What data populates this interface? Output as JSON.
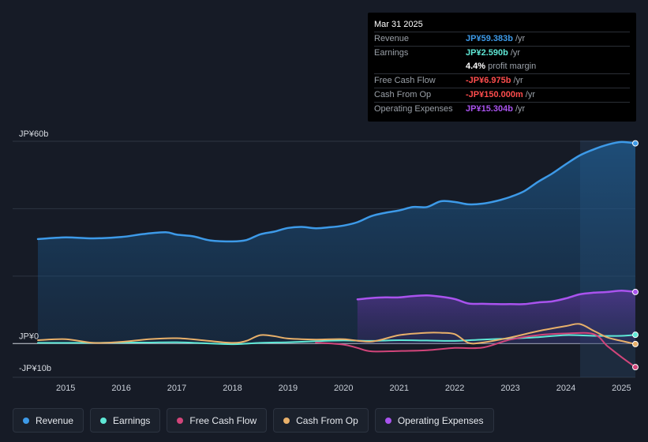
{
  "tooltip": {
    "date": "Mar 31 2025",
    "rows": [
      {
        "label": "Revenue",
        "value": "JP¥59.383b",
        "unit": "/yr",
        "color": "#3d9ae8"
      },
      {
        "label": "Earnings",
        "value": "JP¥2.590b",
        "unit": "/yr",
        "color": "#5fe8d6"
      },
      {
        "label": "",
        "value": "4.4%",
        "unit": "profit margin",
        "color": "#ffffff"
      },
      {
        "label": "Free Cash Flow",
        "value": "-JP¥6.975b",
        "unit": "/yr",
        "color": "#ff4d4d"
      },
      {
        "label": "Cash From Op",
        "value": "-JP¥150.000m",
        "unit": "/yr",
        "color": "#ff4d4d"
      },
      {
        "label": "Operating Expenses",
        "value": "JP¥15.304b",
        "unit": "/yr",
        "color": "#a953ee"
      }
    ]
  },
  "legend": [
    {
      "label": "Revenue",
      "color": "#3d9ae8"
    },
    {
      "label": "Earnings",
      "color": "#5fe8d6"
    },
    {
      "label": "Free Cash Flow",
      "color": "#d2457a"
    },
    {
      "label": "Cash From Op",
      "color": "#e8b06a"
    },
    {
      "label": "Operating Expenses",
      "color": "#a953ee"
    }
  ],
  "chart_data": {
    "type": "area",
    "title": "",
    "xlabel": "",
    "ylabel": "",
    "x_ticks": [
      "2015",
      "2016",
      "2017",
      "2018",
      "2019",
      "2020",
      "2021",
      "2022",
      "2023",
      "2024",
      "2025"
    ],
    "y_ticks": [
      {
        "value": 60,
        "label": "JP¥60b"
      },
      {
        "value": 0,
        "label": "JP¥0"
      },
      {
        "value": -10,
        "label": "-JP¥10b"
      }
    ],
    "xlim": [
      2014.5,
      2025.25
    ],
    "ylim": [
      -10,
      60
    ],
    "units": "JP¥ billions",
    "series": [
      {
        "name": "Revenue",
        "color": "#3d9ae8",
        "fill": true,
        "points": [
          [
            2014.5,
            31.0
          ],
          [
            2015.0,
            31.5
          ],
          [
            2015.5,
            31.2
          ],
          [
            2016.0,
            31.6
          ],
          [
            2016.4,
            32.5
          ],
          [
            2016.8,
            33.0
          ],
          [
            2017.0,
            32.3
          ],
          [
            2017.3,
            31.8
          ],
          [
            2017.6,
            30.6
          ],
          [
            2018.0,
            30.3
          ],
          [
            2018.25,
            30.7
          ],
          [
            2018.5,
            32.4
          ],
          [
            2018.75,
            33.2
          ],
          [
            2019.0,
            34.3
          ],
          [
            2019.25,
            34.6
          ],
          [
            2019.5,
            34.2
          ],
          [
            2019.75,
            34.5
          ],
          [
            2020.0,
            35.0
          ],
          [
            2020.25,
            36.0
          ],
          [
            2020.5,
            37.8
          ],
          [
            2020.75,
            38.8
          ],
          [
            2021.0,
            39.5
          ],
          [
            2021.25,
            40.5
          ],
          [
            2021.5,
            40.5
          ],
          [
            2021.75,
            42.2
          ],
          [
            2022.0,
            42.0
          ],
          [
            2022.25,
            41.3
          ],
          [
            2022.5,
            41.5
          ],
          [
            2022.75,
            42.3
          ],
          [
            2023.0,
            43.5
          ],
          [
            2023.25,
            45.2
          ],
          [
            2023.5,
            48.0
          ],
          [
            2023.75,
            50.4
          ],
          [
            2024.0,
            53.2
          ],
          [
            2024.25,
            55.8
          ],
          [
            2024.5,
            57.6
          ],
          [
            2024.75,
            59.0
          ],
          [
            2025.0,
            59.8
          ],
          [
            2025.25,
            59.4
          ]
        ]
      },
      {
        "name": "Operating Expenses",
        "color": "#a953ee",
        "fill": true,
        "points": [
          [
            2020.25,
            13.1
          ],
          [
            2020.5,
            13.5
          ],
          [
            2020.75,
            13.7
          ],
          [
            2021.0,
            13.7
          ],
          [
            2021.25,
            14.1
          ],
          [
            2021.5,
            14.3
          ],
          [
            2021.75,
            13.9
          ],
          [
            2022.0,
            13.2
          ],
          [
            2022.25,
            11.9
          ],
          [
            2022.5,
            11.8
          ],
          [
            2022.75,
            11.7
          ],
          [
            2023.0,
            11.7
          ],
          [
            2023.25,
            11.7
          ],
          [
            2023.5,
            12.2
          ],
          [
            2023.75,
            12.5
          ],
          [
            2024.0,
            13.4
          ],
          [
            2024.25,
            14.6
          ],
          [
            2024.5,
            15.1
          ],
          [
            2024.75,
            15.3
          ],
          [
            2025.0,
            15.7
          ],
          [
            2025.25,
            15.3
          ]
        ]
      },
      {
        "name": "Earnings",
        "color": "#5fe8d6",
        "fill": false,
        "points": [
          [
            2014.5,
            0.2
          ],
          [
            2015.0,
            0.2
          ],
          [
            2015.5,
            0.2
          ],
          [
            2016.0,
            0.3
          ],
          [
            2016.5,
            0.3
          ],
          [
            2017.0,
            0.4
          ],
          [
            2017.5,
            0.1
          ],
          [
            2018.0,
            -0.2
          ],
          [
            2018.5,
            0.2
          ],
          [
            2019.0,
            0.4
          ],
          [
            2019.5,
            0.7
          ],
          [
            2020.0,
            0.9
          ],
          [
            2020.5,
            0.8
          ],
          [
            2021.0,
            1.0
          ],
          [
            2021.5,
            0.9
          ],
          [
            2022.0,
            0.8
          ],
          [
            2022.5,
            1.2
          ],
          [
            2023.0,
            1.5
          ],
          [
            2023.5,
            1.9
          ],
          [
            2024.0,
            2.5
          ],
          [
            2024.5,
            2.3
          ],
          [
            2025.0,
            2.3
          ],
          [
            2025.25,
            2.6
          ]
        ]
      },
      {
        "name": "Cash From Op",
        "color": "#e8b06a",
        "fill": false,
        "points": [
          [
            2014.5,
            1.0
          ],
          [
            2015.0,
            1.3
          ],
          [
            2015.5,
            0.2
          ],
          [
            2016.0,
            0.5
          ],
          [
            2016.5,
            1.3
          ],
          [
            2017.0,
            1.6
          ],
          [
            2017.5,
            0.9
          ],
          [
            2018.0,
            0.2
          ],
          [
            2018.25,
            0.8
          ],
          [
            2018.5,
            2.5
          ],
          [
            2018.75,
            2.2
          ],
          [
            2019.0,
            1.5
          ],
          [
            2019.5,
            1.2
          ],
          [
            2020.0,
            1.3
          ],
          [
            2020.5,
            0.6
          ],
          [
            2021.0,
            2.5
          ],
          [
            2021.5,
            3.2
          ],
          [
            2021.75,
            3.2
          ],
          [
            2022.0,
            2.8
          ],
          [
            2022.25,
            0.2
          ],
          [
            2022.5,
            0.3
          ],
          [
            2023.0,
            1.8
          ],
          [
            2023.5,
            3.7
          ],
          [
            2024.0,
            5.2
          ],
          [
            2024.25,
            5.8
          ],
          [
            2024.5,
            3.8
          ],
          [
            2024.75,
            1.8
          ],
          [
            2025.0,
            0.8
          ],
          [
            2025.25,
            -0.15
          ]
        ]
      },
      {
        "name": "Free Cash Flow",
        "color": "#d2457a",
        "fill": false,
        "points": [
          [
            2019.5,
            0.3
          ],
          [
            2020.0,
            -0.3
          ],
          [
            2020.25,
            -1.3
          ],
          [
            2020.5,
            -2.3
          ],
          [
            2021.0,
            -2.2
          ],
          [
            2021.5,
            -2.0
          ],
          [
            2022.0,
            -1.3
          ],
          [
            2022.5,
            -1.2
          ],
          [
            2023.0,
            1.2
          ],
          [
            2023.5,
            2.5
          ],
          [
            2024.0,
            3.0
          ],
          [
            2024.5,
            2.8
          ],
          [
            2024.75,
            -0.8
          ],
          [
            2025.0,
            -4.0
          ],
          [
            2025.25,
            -7.0
          ]
        ]
      }
    ]
  }
}
